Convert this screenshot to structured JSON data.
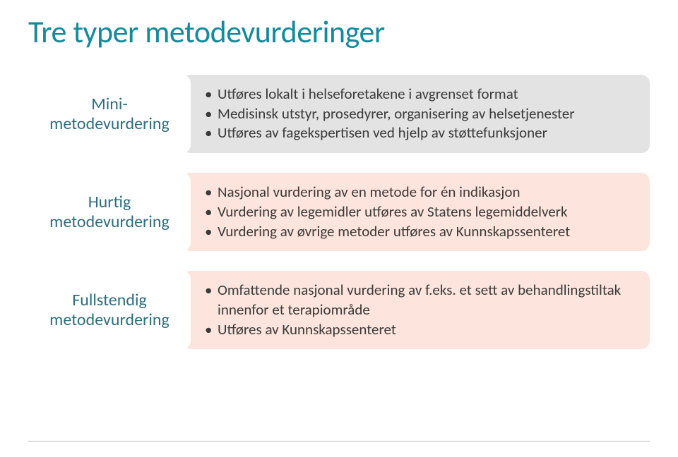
{
  "title": "Tre typer metodevurderinger",
  "rows": [
    {
      "label": "Mini-\nmetodevurdering",
      "label_bg": "#ffffff",
      "label_color": "#2f6d7d",
      "bullet_bg": "#e3e3e3",
      "bullets": [
        "Utføres lokalt i helseforetakene i avgrenset format",
        "Medisinsk utstyr, prosedyrer, organisering av helsetjenester",
        "Utføres av fagekspertisen ved hjelp av støttefunksjoner"
      ]
    },
    {
      "label": "Hurtig\nmetodevurdering",
      "label_bg": "#ffffff",
      "label_color": "#2f6d7d",
      "bullet_bg": "#fde5dd",
      "bullets": [
        "Nasjonal vurdering av en metode for én indikasjon",
        "Vurdering av legemidler utføres av Statens legemiddelverk",
        "Vurdering av øvrige metoder utføres av Kunnskapssenteret"
      ]
    },
    {
      "label": "Fullstendig\nmetodevurdering",
      "label_bg": "#ffffff",
      "label_color": "#2f6d7d",
      "bullet_bg": "#fde5dd",
      "bullets": [
        "Omfattende nasjonal vurdering av f.eks. et sett av behandlingstiltak innenfor et terapiområde",
        "Utføres av Kunnskapssenteret"
      ]
    }
  ],
  "style": {
    "title_color": "#158a9c",
    "title_fontsize": 44,
    "label_fontsize": 24,
    "bullet_fontsize": 21,
    "row_radius": 12,
    "footer_line_color": "#b8b8b8"
  }
}
